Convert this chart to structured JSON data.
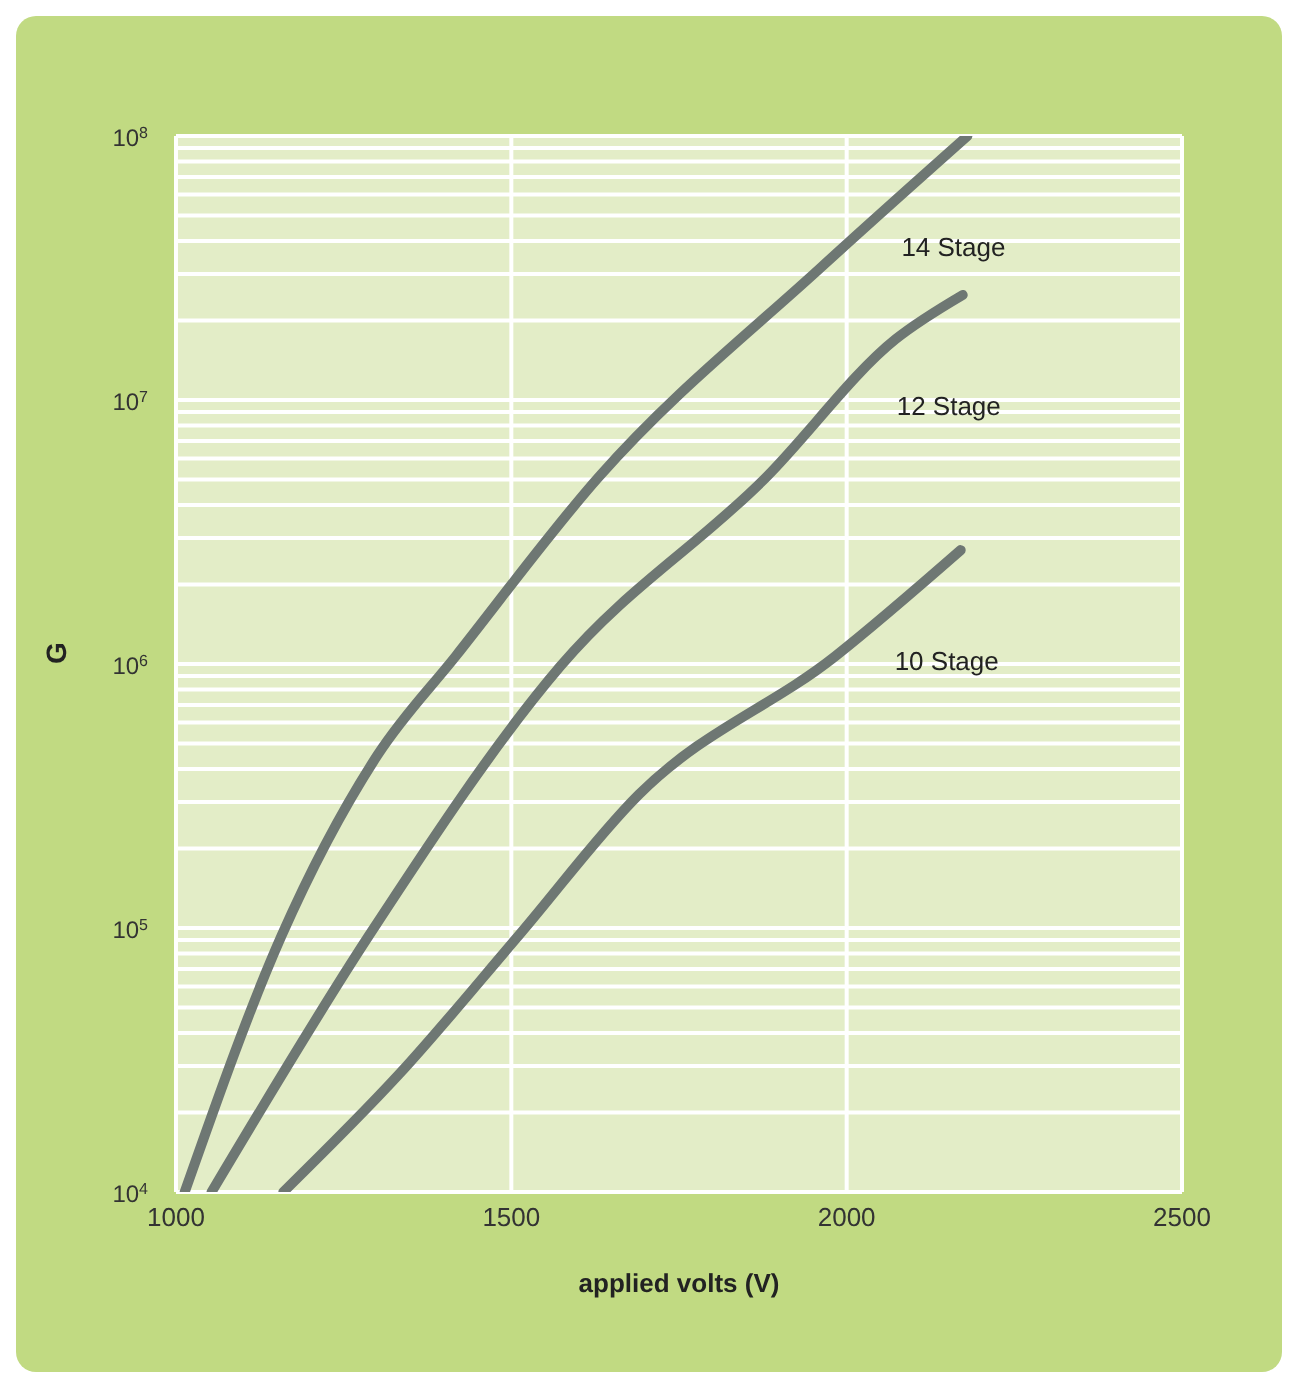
{
  "chart_data": {
    "type": "line",
    "xlabel": "applied volts (V)",
    "ylabel": "G",
    "log": "y",
    "grid": true,
    "legend": false,
    "marker": "none",
    "line_style": "solid",
    "xlim": [
      1000,
      2500
    ],
    "xticks": [
      1000,
      1500,
      2000,
      2500
    ],
    "ylim": [
      10000,
      100000000
    ],
    "yticks": [
      {
        "value": 10000,
        "label": "10$^{4}$"
      },
      {
        "value": 20000,
        "label": null
      },
      {
        "value": 30000,
        "label": null
      },
      {
        "value": 40000,
        "label": null
      },
      {
        "value": 50000,
        "label": null
      },
      {
        "value": 60000,
        "label": null
      },
      {
        "value": 70000,
        "label": null
      },
      {
        "value": 80000,
        "label": null
      },
      {
        "value": 90000,
        "label": null
      },
      {
        "value": 100000,
        "label": "10$^{5}$"
      },
      {
        "value": 200000,
        "label": null
      },
      {
        "value": 300000,
        "label": null
      },
      {
        "value": 400000,
        "label": null
      },
      {
        "value": 500000,
        "label": null
      },
      {
        "value": 600000,
        "label": null
      },
      {
        "value": 700000,
        "label": null
      },
      {
        "value": 800000,
        "label": null
      },
      {
        "value": 900000,
        "label": null
      },
      {
        "value": 1000000,
        "label": "10$^{6}$"
      },
      {
        "value": 2000000,
        "label": null
      },
      {
        "value": 3000000,
        "label": null
      },
      {
        "value": 4000000,
        "label": null
      },
      {
        "value": 5000000,
        "label": null
      },
      {
        "value": 6000000,
        "label": null
      },
      {
        "value": 7000000,
        "label": null
      },
      {
        "value": 8000000,
        "label": null
      },
      {
        "value": 9000000,
        "label": null
      },
      {
        "value": 10000000,
        "label": "10$^{7}$"
      },
      {
        "value": 20000000,
        "label": null
      },
      {
        "value": 30000000,
        "label": null
      },
      {
        "value": 40000000,
        "label": null
      },
      {
        "value": 50000000,
        "label": null
      },
      {
        "value": 60000000,
        "label": null
      },
      {
        "value": 70000000,
        "label": null
      },
      {
        "value": 80000000,
        "label": null
      },
      {
        "value": 90000000,
        "label": null
      },
      {
        "value": 100000000,
        "label": "10$^{8}$"
      }
    ],
    "series": [
      {
        "name": "14 Stage",
        "color": "#6e7773",
        "x": [
          1013,
          1157,
          1300,
          1417,
          1630,
          1963,
          2180
        ],
        "values": [
          10000,
          93000,
          450000,
          1070000,
          5100000,
          32000000,
          100000000
        ]
      },
      {
        "name": "12 Stage",
        "color": "#6e7773",
        "x": [
          1053,
          1287,
          1573,
          1880,
          2073,
          2173
        ],
        "values": [
          10000,
          93000,
          980000,
          5100000,
          17000000,
          25000000
        ]
      },
      {
        "name": "10 Stage",
        "color": "#6e7773",
        "x": [
          1160,
          1333,
          1510,
          1690,
          1983,
          2170
        ],
        "values": [
          10000,
          28000,
          93000,
          320000,
          1070000,
          2700000
        ]
      }
    ]
  }
}
